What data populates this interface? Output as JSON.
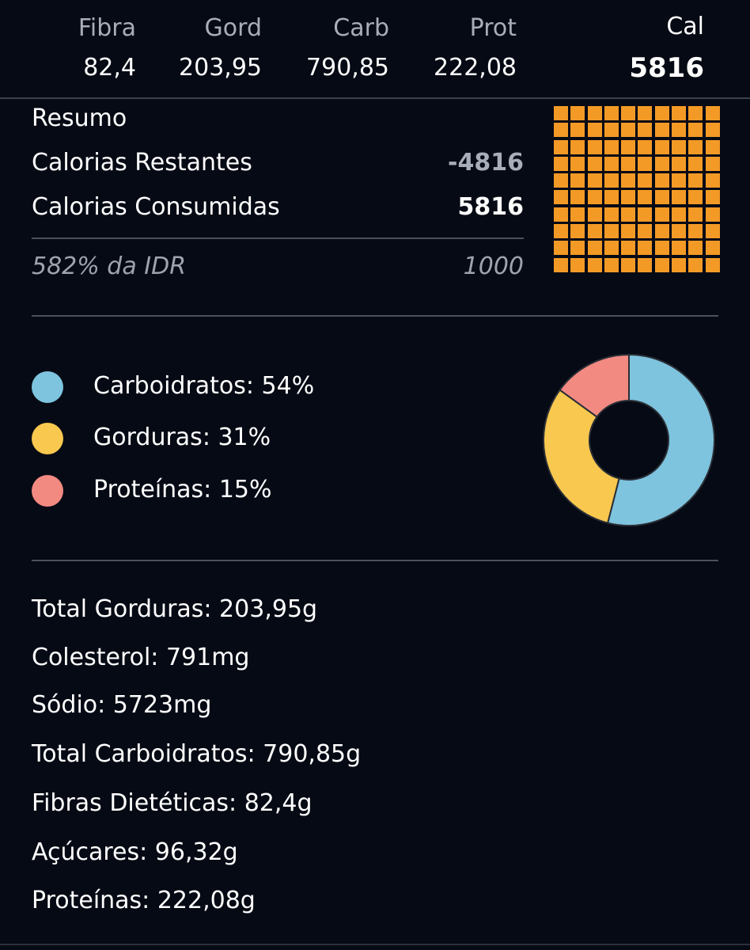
{
  "header": {
    "columns": [
      {
        "label": "Fibra",
        "value": "82,4"
      },
      {
        "label": "Gord",
        "value": "203,95"
      },
      {
        "label": "Carb",
        "value": "790,85"
      },
      {
        "label": "Prot",
        "value": "222,08"
      }
    ],
    "cal_label": "Cal",
    "cal_value": "5816"
  },
  "summary": {
    "title": "Resumo",
    "remaining_label": "Calorias Restantes",
    "remaining_value": "-4816",
    "consumed_label": "Calorias Consumidas",
    "consumed_value": "5816",
    "idr_label": "582% da IDR",
    "idr_value": "1000",
    "grid_color": "#f39a26",
    "grid_fill_fraction": 1.0
  },
  "macros": {
    "legend": [
      {
        "label": "Carboidratos: 54%",
        "color": "#7ec4de",
        "percent": 54
      },
      {
        "label": "Gorduras: 31%",
        "color": "#f8c84f",
        "percent": 31
      },
      {
        "label": "Proteínas: 15%",
        "color": "#f38a82",
        "percent": 15
      }
    ]
  },
  "nutrients": [
    "Total Gorduras: 203,95g",
    "Colesterol: 791mg",
    "Sódio: 5723mg",
    "Total Carboidratos: 790,85g",
    "Fibras Dietéticas: 82,4g",
    "Açúcares: 96,32g",
    "Proteínas: 222,08g"
  ],
  "chart_data": {
    "type": "pie",
    "categories": [
      "Carboidratos",
      "Gorduras",
      "Proteínas"
    ],
    "values": [
      54,
      31,
      15
    ],
    "colors": [
      "#7ec4de",
      "#f8c84f",
      "#f38a82"
    ],
    "title": "",
    "legend": "left"
  }
}
